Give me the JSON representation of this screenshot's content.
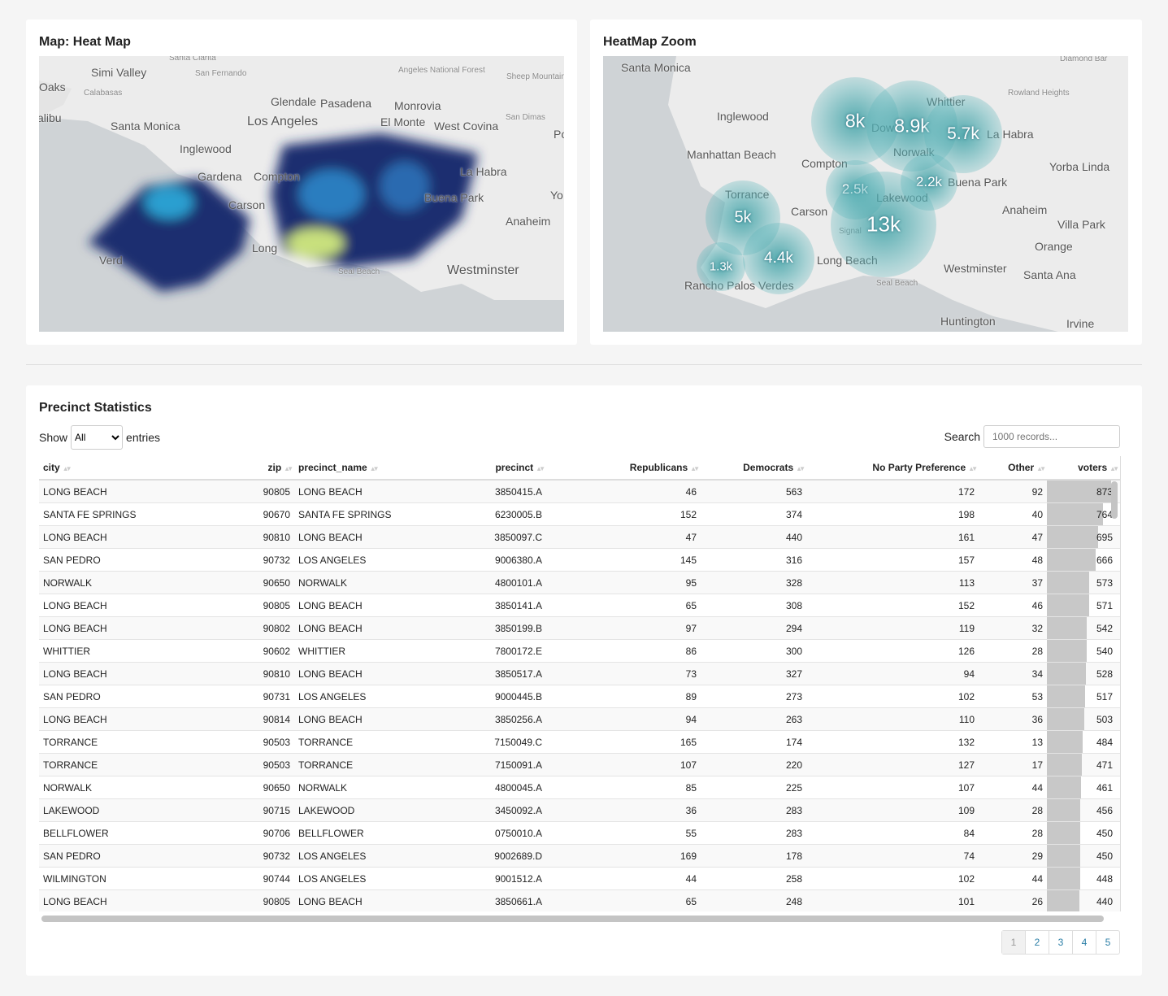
{
  "heatmap_panel": {
    "title": "Map: Heat Map",
    "labels": [
      "Santa Clarita",
      "Simi Valley",
      "San Fernando",
      "Angeles National Forest",
      "Sheep Mountain Wilderness",
      "Oaks",
      "Calabasas",
      "alibu",
      "Glendale",
      "Pasadena",
      "Monrovia",
      "Santa Monica",
      "Los Angeles",
      "El Monte",
      "West Covina",
      "San Dimas",
      "Po",
      "Inglewood",
      "Gardena",
      "Compton",
      "La Habra",
      "Carson",
      "Buena Park",
      "Yo",
      "Anaheim",
      "Long",
      "Verd",
      "Seal Beach",
      "Westminster"
    ]
  },
  "zoom_panel": {
    "title": "HeatMap Zoom",
    "labels": [
      "Diamond Bar",
      "Santa Monica",
      "Whittier",
      "Rowland Heights",
      "Inglewood",
      "La Habra",
      "Dow",
      "Norwalk",
      "Manhattan Beach",
      "Compton",
      "Yorba Linda",
      "Buena Park",
      "Lakewood",
      "Torrance",
      "Carson",
      "Anaheim",
      "Villa Park",
      "Signal",
      "Orange",
      "Long Beach",
      "Rancho Palos Verdes",
      "Westminster",
      "Santa Ana",
      "Seal Beach",
      "Huntington",
      "Irvine"
    ],
    "clusters": [
      {
        "label": "8k",
        "value": 8000
      },
      {
        "label": "8.9k",
        "value": 8900
      },
      {
        "label": "5.7k",
        "value": 5700
      },
      {
        "label": "2.2k",
        "value": 2200
      },
      {
        "label": "2.5k",
        "value": 2500
      },
      {
        "label": "13k",
        "value": 13000
      },
      {
        "label": "5k",
        "value": 5000
      },
      {
        "label": "4.4k",
        "value": 4400
      },
      {
        "label": "1.3k",
        "value": 1300
      }
    ]
  },
  "table_panel": {
    "title": "Precinct Statistics",
    "show_label": "Show",
    "entries_label": "entries",
    "length_selected": "All",
    "search_label": "Search",
    "search_placeholder": "1000 records...",
    "columns": [
      "city",
      "zip",
      "precinct_name",
      "precinct",
      "Republicans",
      "Democrats",
      "No Party Preference",
      "Other",
      "voters"
    ],
    "rows": [
      [
        "LONG BEACH",
        "90805",
        "LONG BEACH",
        "3850415.A",
        "46",
        "563",
        "172",
        "92",
        "873"
      ],
      [
        "SANTA FE SPRINGS",
        "90670",
        "SANTA FE SPRINGS",
        "6230005.B",
        "152",
        "374",
        "198",
        "40",
        "764"
      ],
      [
        "LONG BEACH",
        "90810",
        "LONG BEACH",
        "3850097.C",
        "47",
        "440",
        "161",
        "47",
        "695"
      ],
      [
        "SAN PEDRO",
        "90732",
        "LOS ANGELES",
        "9006380.A",
        "145",
        "316",
        "157",
        "48",
        "666"
      ],
      [
        "NORWALK",
        "90650",
        "NORWALK",
        "4800101.A",
        "95",
        "328",
        "113",
        "37",
        "573"
      ],
      [
        "LONG BEACH",
        "90805",
        "LONG BEACH",
        "3850141.A",
        "65",
        "308",
        "152",
        "46",
        "571"
      ],
      [
        "LONG BEACH",
        "90802",
        "LONG BEACH",
        "3850199.B",
        "97",
        "294",
        "119",
        "32",
        "542"
      ],
      [
        "WHITTIER",
        "90602",
        "WHITTIER",
        "7800172.E",
        "86",
        "300",
        "126",
        "28",
        "540"
      ],
      [
        "LONG BEACH",
        "90810",
        "LONG BEACH",
        "3850517.A",
        "73",
        "327",
        "94",
        "34",
        "528"
      ],
      [
        "SAN PEDRO",
        "90731",
        "LOS ANGELES",
        "9000445.B",
        "89",
        "273",
        "102",
        "53",
        "517"
      ],
      [
        "LONG BEACH",
        "90814",
        "LONG BEACH",
        "3850256.A",
        "94",
        "263",
        "110",
        "36",
        "503"
      ],
      [
        "TORRANCE",
        "90503",
        "TORRANCE",
        "7150049.C",
        "165",
        "174",
        "132",
        "13",
        "484"
      ],
      [
        "TORRANCE",
        "90503",
        "TORRANCE",
        "7150091.A",
        "107",
        "220",
        "127",
        "17",
        "471"
      ],
      [
        "NORWALK",
        "90650",
        "NORWALK",
        "4800045.A",
        "85",
        "225",
        "107",
        "44",
        "461"
      ],
      [
        "LAKEWOOD",
        "90715",
        "LAKEWOOD",
        "3450092.A",
        "36",
        "283",
        "109",
        "28",
        "456"
      ],
      [
        "BELLFLOWER",
        "90706",
        "BELLFLOWER",
        "0750010.A",
        "55",
        "283",
        "84",
        "28",
        "450"
      ],
      [
        "SAN PEDRO",
        "90732",
        "LOS ANGELES",
        "9002689.D",
        "169",
        "178",
        "74",
        "29",
        "450"
      ],
      [
        "WILMINGTON",
        "90744",
        "LOS ANGELES",
        "9001512.A",
        "44",
        "258",
        "102",
        "44",
        "448"
      ],
      [
        "LONG BEACH",
        "90805",
        "LONG BEACH",
        "3850661.A",
        "65",
        "248",
        "101",
        "26",
        "440"
      ]
    ],
    "pages": [
      "1",
      "2",
      "3",
      "4",
      "5"
    ]
  }
}
